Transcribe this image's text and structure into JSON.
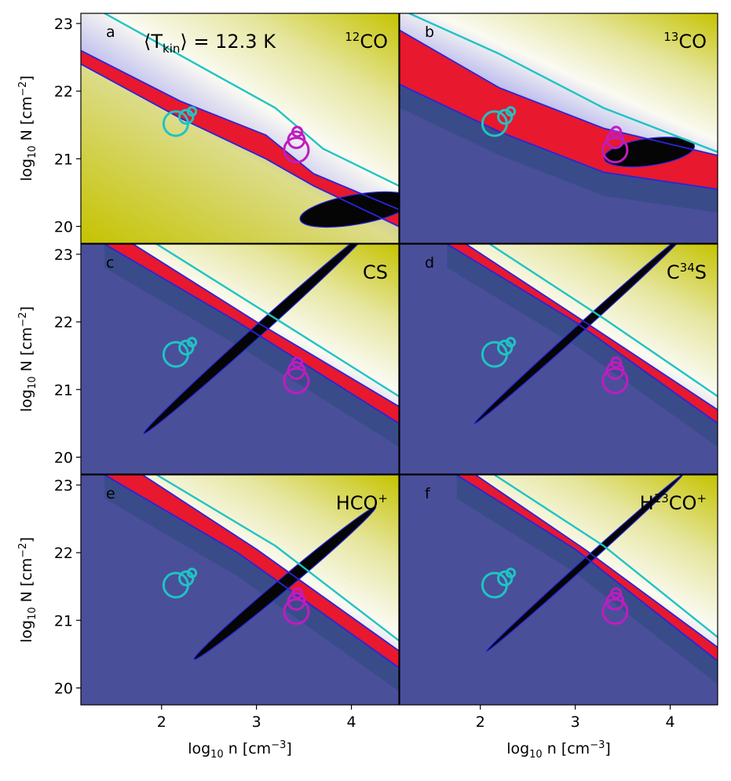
{
  "chart_data": {
    "type": "heatmap",
    "layout": "3x2 grid of panels with shared axes",
    "temperature_annotation": {
      "prefix": "⟨T",
      "sub": "kin",
      "suffix": "⟩ = 12.3 K"
    },
    "xlabel": {
      "pre": "log",
      "sub": "10",
      "mid": " n [cm",
      "sup": "−3",
      "post": "]"
    },
    "ylabel": {
      "pre": "log",
      "sub": "10",
      "mid": " N [cm",
      "sup": "−2",
      "post": "]"
    },
    "xlim": [
      1.15,
      4.5
    ],
    "ylim": [
      19.75,
      23.15
    ],
    "xticks": [
      2,
      3,
      4
    ],
    "yticks": [
      20,
      21,
      22,
      23
    ],
    "cyan_markers": [
      {
        "x": 2.15,
        "y": 21.52,
        "r": 0.18
      },
      {
        "x": 2.26,
        "y": 21.62,
        "r": 0.1
      },
      {
        "x": 2.32,
        "y": 21.7,
        "r": 0.06
      }
    ],
    "magenta_markers": [
      {
        "x": 3.42,
        "y": 21.13,
        "r": 0.18
      },
      {
        "x": 3.42,
        "y": 21.28,
        "r": 0.12
      },
      {
        "x": 3.43,
        "y": 21.4,
        "r": 0.07
      }
    ],
    "panels": [
      {
        "letter": "a",
        "molecule": {
          "pre": "",
          "sup": "12",
          "base": "CO",
          "sup2": ""
        },
        "lower_background": "#c6c81e",
        "band_lower": [
          [
            1.15,
            22.4
          ],
          [
            2.2,
            21.6
          ],
          [
            3.1,
            21.0
          ],
          [
            3.6,
            20.6
          ],
          [
            4.5,
            20.0
          ]
        ],
        "band_upper": [
          [
            1.15,
            22.6
          ],
          [
            2.2,
            21.85
          ],
          [
            3.1,
            21.35
          ],
          [
            3.6,
            20.78
          ],
          [
            4.5,
            20.25
          ]
        ],
        "cyan_contour": [
          [
            1.4,
            23.15
          ],
          [
            2.3,
            22.45
          ],
          [
            3.2,
            21.75
          ],
          [
            3.7,
            21.15
          ],
          [
            4.5,
            20.6
          ]
        ],
        "black_ellipse": {
          "cx": 4.05,
          "cy": 20.25,
          "rx": 0.6,
          "ry": 0.22,
          "angle": -10
        }
      },
      {
        "letter": "b",
        "molecule": {
          "pre": "",
          "sup": "13",
          "base": "CO",
          "sup2": ""
        },
        "lower_background": "#4a4f9a",
        "band_lower": [
          [
            1.15,
            22.1
          ],
          [
            2.2,
            21.4
          ],
          [
            3.3,
            20.8
          ],
          [
            4.5,
            20.55
          ]
        ],
        "band_upper": [
          [
            1.15,
            22.9
          ],
          [
            2.2,
            22.05
          ],
          [
            3.3,
            21.45
          ],
          [
            4.5,
            21.05
          ]
        ],
        "cyan_contour": [
          [
            1.25,
            23.15
          ],
          [
            2.2,
            22.55
          ],
          [
            3.3,
            21.75
          ],
          [
            4.5,
            21.1
          ]
        ],
        "black_ellipse": {
          "cx": 3.78,
          "cy": 21.1,
          "rx": 0.48,
          "ry": 0.2,
          "angle": -8
        }
      },
      {
        "letter": "c",
        "molecule": {
          "pre": "",
          "sup": "",
          "base": "CS",
          "sup2": ""
        },
        "lower_background": "#4a4f9a",
        "band_lower": [
          [
            1.4,
            23.15
          ],
          [
            2.8,
            22.0
          ],
          [
            4.5,
            20.5
          ]
        ],
        "band_upper": [
          [
            1.7,
            23.15
          ],
          [
            3.0,
            22.0
          ],
          [
            4.5,
            20.75
          ]
        ],
        "cyan_contour": [
          [
            1.95,
            23.15
          ],
          [
            3.2,
            22.05
          ],
          [
            4.5,
            20.9
          ]
        ],
        "black_ellipse": {
          "cx": 3.0,
          "cy": 21.85,
          "rx": 1.6,
          "ry": 0.08,
          "angle": -42
        }
      },
      {
        "letter": "d",
        "molecule": {
          "pre": "C",
          "sup": "34",
          "base": "S",
          "sup2": ""
        },
        "lower_background": "#4a4f9a",
        "band_lower": [
          [
            1.65,
            23.15
          ],
          [
            3.0,
            22.0
          ],
          [
            4.5,
            20.5
          ]
        ],
        "band_upper": [
          [
            1.85,
            23.15
          ],
          [
            3.1,
            22.0
          ],
          [
            4.5,
            20.7
          ]
        ],
        "cyan_contour": [
          [
            2.1,
            23.15
          ],
          [
            3.3,
            22.05
          ],
          [
            4.5,
            20.9
          ]
        ],
        "black_ellipse": {
          "cx": 3.05,
          "cy": 21.9,
          "rx": 1.5,
          "ry": 0.06,
          "angle": -42
        }
      },
      {
        "letter": "e",
        "molecule": {
          "pre": "HCO",
          "sup": "",
          "base": "",
          "sup2": "+"
        },
        "lower_background": "#4a4f9a",
        "band_lower": [
          [
            1.4,
            23.15
          ],
          [
            2.8,
            22.0
          ],
          [
            4.5,
            20.3
          ]
        ],
        "band_upper": [
          [
            1.8,
            23.15
          ],
          [
            3.0,
            22.05
          ],
          [
            4.5,
            20.55
          ]
        ],
        "cyan_contour": [
          [
            1.95,
            23.15
          ],
          [
            3.2,
            22.1
          ],
          [
            4.5,
            20.7
          ]
        ],
        "black_ellipse": {
          "cx": 3.3,
          "cy": 21.55,
          "rx": 1.25,
          "ry": 0.09,
          "angle": -40
        }
      },
      {
        "letter": "f",
        "molecule": {
          "pre": "H",
          "sup": "13",
          "base": "CO",
          "sup2": "+"
        },
        "lower_background": "#4a4f9a",
        "band_lower": [
          [
            1.75,
            23.15
          ],
          [
            3.0,
            22.05
          ],
          [
            4.5,
            20.4
          ]
        ],
        "band_upper": [
          [
            1.95,
            23.15
          ],
          [
            3.1,
            22.05
          ],
          [
            4.5,
            20.6
          ]
        ],
        "cyan_contour": [
          [
            2.15,
            23.15
          ],
          [
            3.3,
            22.1
          ],
          [
            4.5,
            20.75
          ]
        ],
        "black_ellipse": {
          "cx": 3.1,
          "cy": 21.85,
          "rx": 1.4,
          "ry": 0.05,
          "angle": -42
        }
      }
    ]
  }
}
